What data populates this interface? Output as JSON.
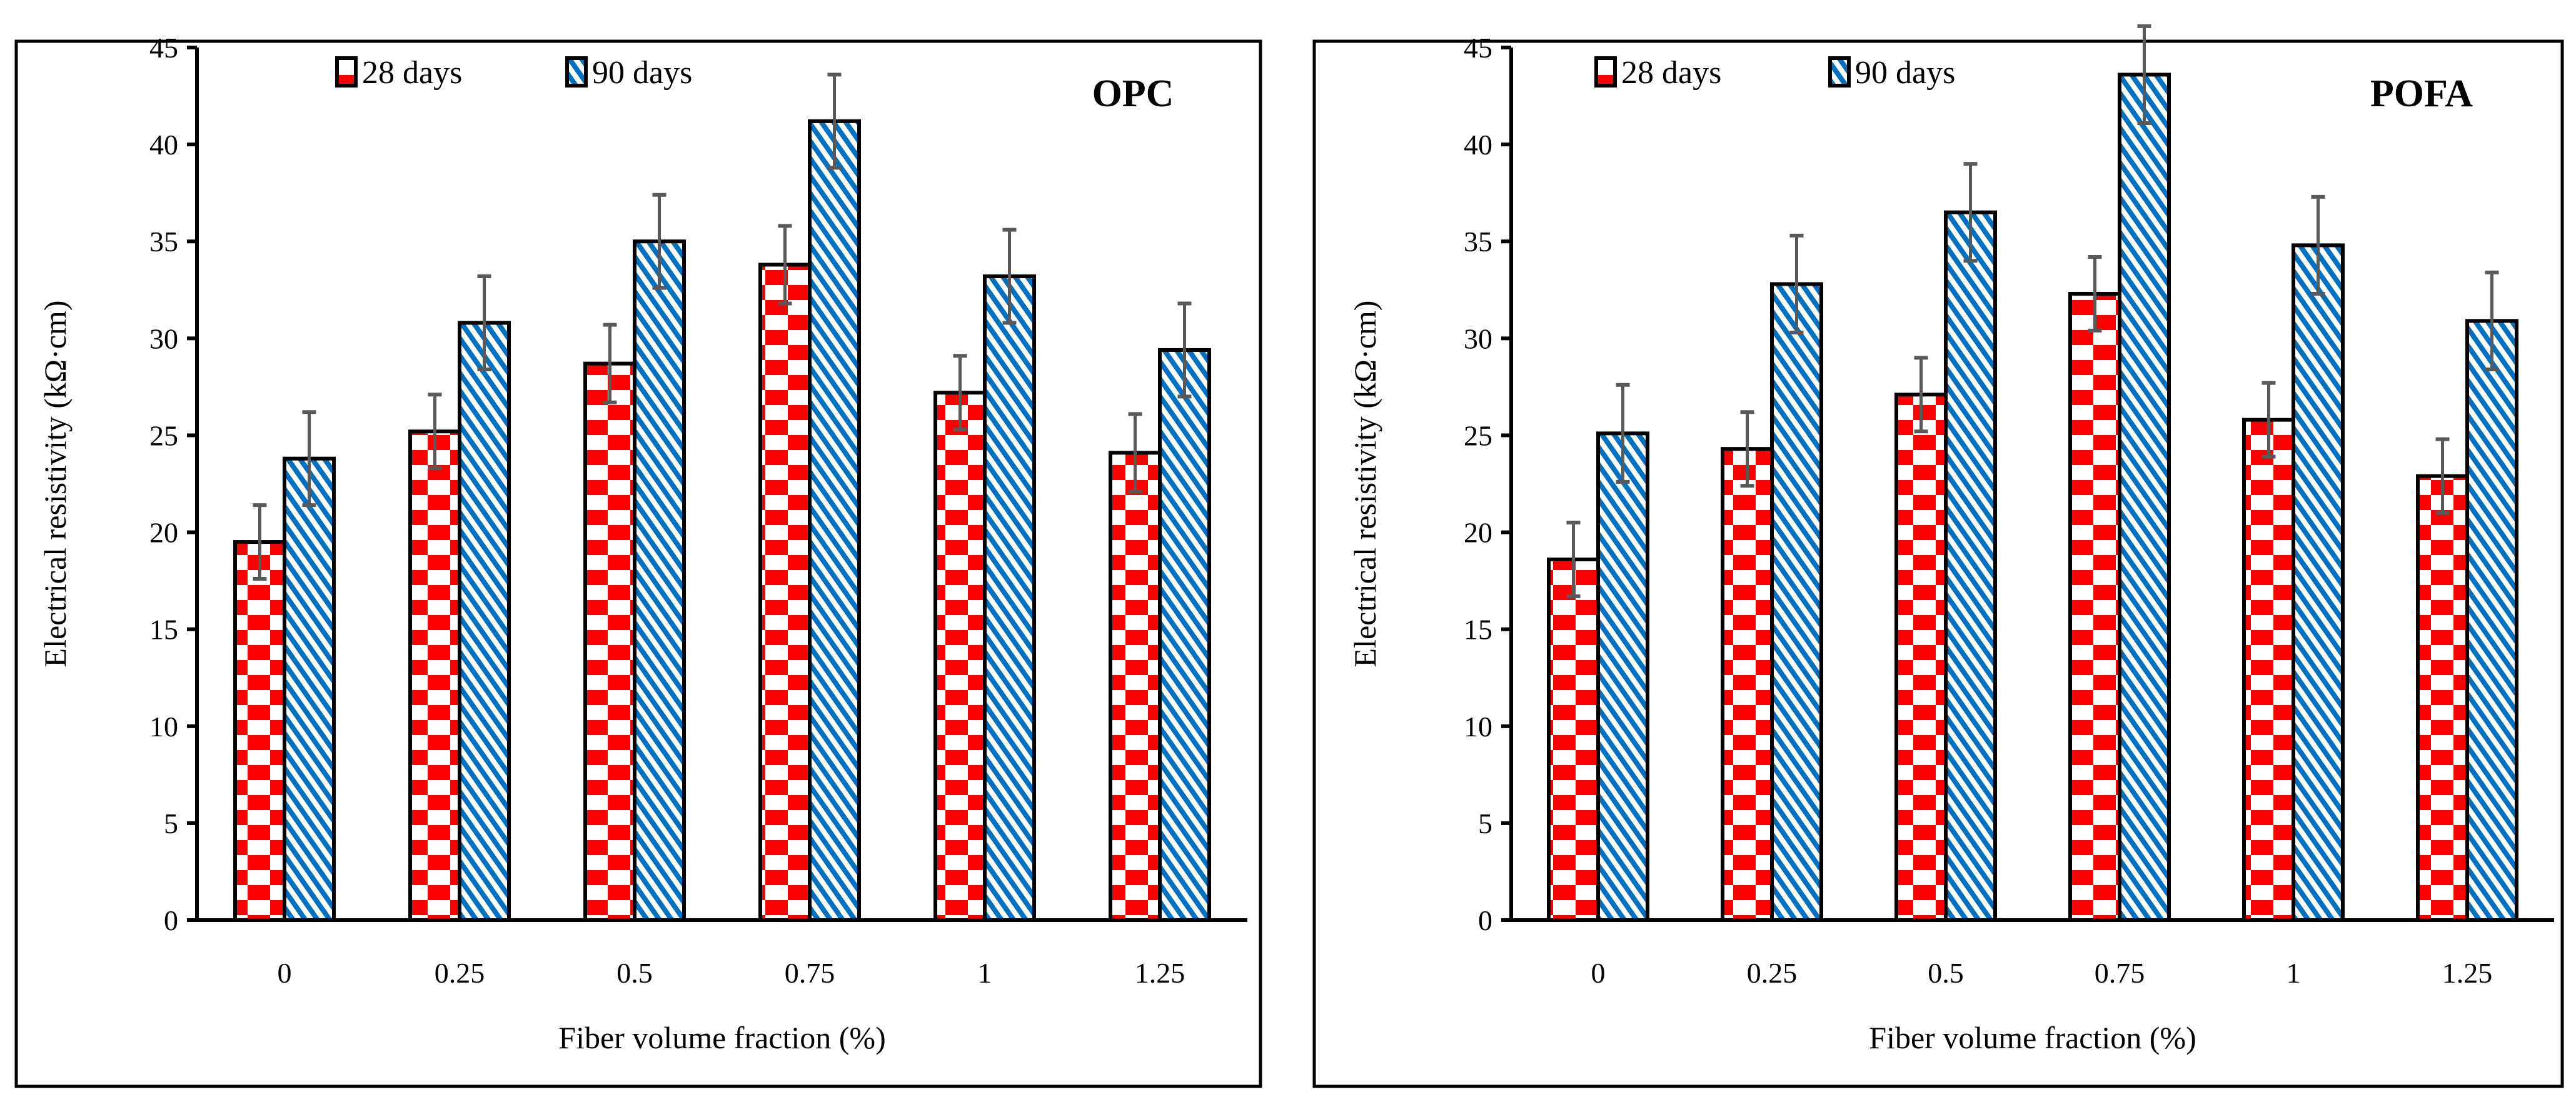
{
  "chart_data": [
    {
      "type": "bar",
      "title": "OPC",
      "xlabel": "Fiber volume fraction (%)",
      "ylabel": "Electrical resistivity (kΩ·cm)",
      "ylim": [
        0,
        45
      ],
      "yticks": [
        "0",
        "5",
        "10",
        "15",
        "20",
        "25",
        "30",
        "35",
        "40",
        "45"
      ],
      "categories": [
        "0",
        "0.25",
        "0.5",
        "0.75",
        "1",
        "1.25"
      ],
      "legend_position": "top-left",
      "grid": false,
      "series": [
        {
          "name": "28 days",
          "pattern": "red-checker",
          "color": "#ff0000",
          "values": [
            19.5,
            25.2,
            28.7,
            33.8,
            27.2,
            24.1
          ],
          "errors": [
            1.9,
            1.9,
            2.0,
            2.0,
            1.9,
            2.0
          ]
        },
        {
          "name": "90 days",
          "pattern": "blue-diagonal",
          "color": "#0070c0",
          "values": [
            23.8,
            30.8,
            35.0,
            41.2,
            33.2,
            29.4
          ],
          "errors": [
            2.4,
            2.4,
            2.4,
            2.4,
            2.4,
            2.4
          ]
        }
      ]
    },
    {
      "type": "bar",
      "title": "POFA",
      "xlabel": "Fiber volume fraction (%)",
      "ylabel": "Electrical resistivity (kΩ·cm)",
      "ylim": [
        0,
        45
      ],
      "yticks": [
        "0",
        "5",
        "10",
        "15",
        "20",
        "25",
        "30",
        "35",
        "40",
        "45"
      ],
      "categories": [
        "0",
        "0.25",
        "0.5",
        "0.75",
        "1",
        "1.25"
      ],
      "legend_position": "top-left",
      "grid": false,
      "series": [
        {
          "name": "28 days",
          "pattern": "red-checker",
          "color": "#ff0000",
          "values": [
            18.6,
            24.3,
            27.1,
            32.3,
            25.8,
            22.9
          ],
          "errors": [
            1.9,
            1.9,
            1.9,
            1.9,
            1.9,
            1.9
          ]
        },
        {
          "name": "90 days",
          "pattern": "blue-diagonal",
          "color": "#0070c0",
          "values": [
            25.1,
            32.8,
            36.5,
            43.6,
            34.8,
            30.9
          ],
          "errors": [
            2.5,
            2.5,
            2.5,
            2.5,
            2.5,
            2.5
          ]
        }
      ]
    }
  ],
  "colors": {
    "error_bar": "#595959",
    "outline": "#000000"
  }
}
